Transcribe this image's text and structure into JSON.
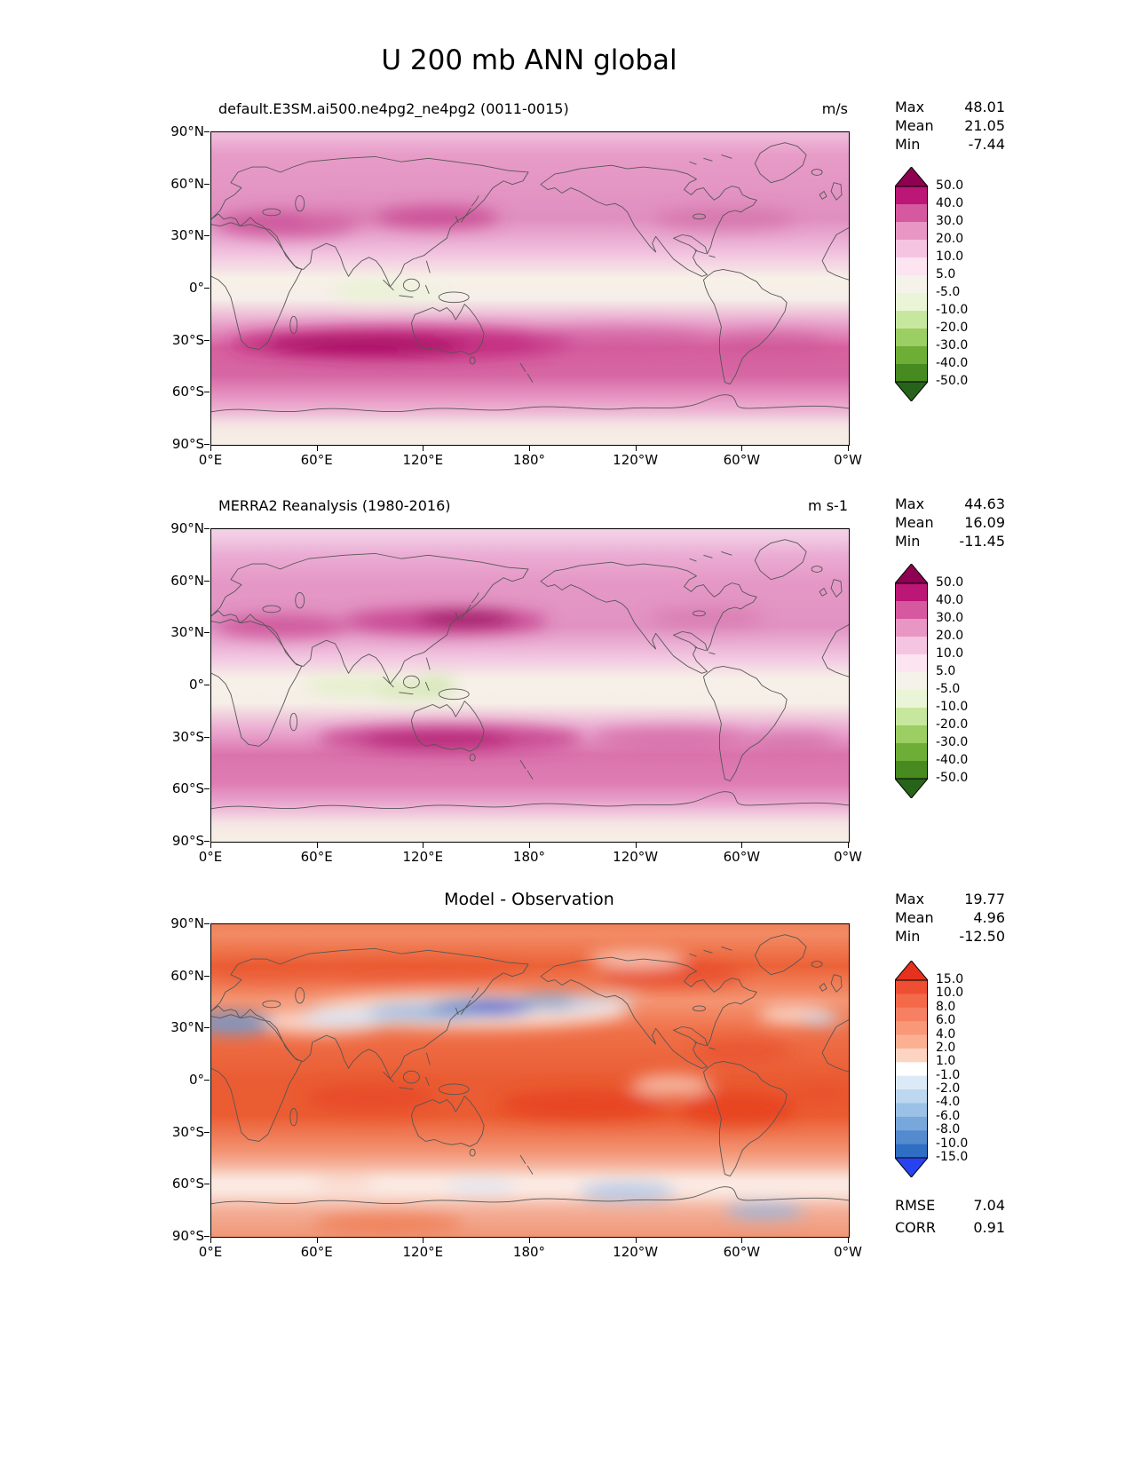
{
  "page_title": "U 200 mb ANN global",
  "axes": {
    "lat_ticks": [
      "90°N",
      "60°N",
      "30°N",
      "0°",
      "30°S",
      "60°S",
      "90°S"
    ],
    "lon_ticks": [
      "0°E",
      "60°E",
      "120°E",
      "180°",
      "120°W",
      "60°W",
      "0°W"
    ]
  },
  "panels": [
    {
      "title": "default.E3SM.ai500.ne4pg2_ne4pg2 (0011-0015)",
      "units": "m/s",
      "stats": {
        "max_label": "Max",
        "max": "48.01",
        "mean_label": "Mean",
        "mean": "21.05",
        "min_label": "Min",
        "min": "-7.44"
      },
      "colorbar": {
        "labels": [
          "50.0",
          "40.0",
          "30.0",
          "20.0",
          "10.0",
          "5.0",
          "-5.0",
          "-10.0",
          "-20.0",
          "-30.0",
          "-40.0",
          "-50.0"
        ],
        "colors": [
          "#8e0152",
          "#bc1676",
          "#d6589e",
          "#e897c4",
          "#f5c4e1",
          "#fce4f0",
          "#f5f2e9",
          "#e9f5d6",
          "#c7e79e",
          "#9bce63",
          "#6eae36",
          "#468a20",
          "#276419"
        ]
      }
    },
    {
      "title": "MERRA2 Reanalysis (1980-2016)",
      "units": "m s-1",
      "stats": {
        "max_label": "Max",
        "max": "44.63",
        "mean_label": "Mean",
        "mean": "16.09",
        "min_label": "Min",
        "min": "-11.45"
      },
      "colorbar": {
        "labels": [
          "50.0",
          "40.0",
          "30.0",
          "20.0",
          "10.0",
          "5.0",
          "-5.0",
          "-10.0",
          "-20.0",
          "-30.0",
          "-40.0",
          "-50.0"
        ],
        "colors": [
          "#8e0152",
          "#bc1676",
          "#d6589e",
          "#e897c4",
          "#f5c4e1",
          "#fce4f0",
          "#f5f2e9",
          "#e9f5d6",
          "#c7e79e",
          "#9bce63",
          "#6eae36",
          "#468a20",
          "#276419"
        ]
      }
    },
    {
      "title": "Model - Observation",
      "units": "",
      "stats": {
        "max_label": "Max",
        "max": "19.77",
        "mean_label": "Mean",
        "mean": "4.96",
        "min_label": "Min",
        "min": "-12.50"
      },
      "colorbar": {
        "labels": [
          "15.0",
          "10.0",
          "8.0",
          "6.0",
          "4.0",
          "2.0",
          "1.0",
          "-1.0",
          "-2.0",
          "-4.0",
          "-6.0",
          "-8.0",
          "-10.0",
          "-15.0"
        ],
        "colors": [
          "#e6311e",
          "#ee4f33",
          "#f3694a",
          "#f68061",
          "#f99879",
          "#fbb092",
          "#fdd3c1",
          "#ffffff",
          "#dce9f7",
          "#bcd7ef",
          "#9cc1e6",
          "#78a7db",
          "#548bcf",
          "#2f6ec2",
          "#2743ef"
        ]
      },
      "scores": {
        "rmse_label": "RMSE",
        "rmse": "7.04",
        "corr_label": "CORR",
        "corr": "0.91"
      }
    }
  ],
  "chart_data": [
    {
      "type": "heatmap",
      "subtype": "filled-contour-map",
      "title": "default.E3SM.ai500.ne4pg2_ne4pg2 (0011-0015)",
      "variable": "U 200 mb ANN global",
      "units": "m/s",
      "stats": {
        "max": 48.01,
        "mean": 21.05,
        "min": -7.44
      },
      "contour_levels": [
        -50,
        -40,
        -30,
        -20,
        -10,
        -5,
        5,
        10,
        20,
        30,
        40,
        50
      ],
      "x_ticks": [
        "0°E",
        "60°E",
        "120°E",
        "180°",
        "120°W",
        "60°W",
        "0°W"
      ],
      "y_ticks": [
        "90°N",
        "60°N",
        "30°N",
        "0°",
        "30°S",
        "60°S",
        "90°S"
      ],
      "colormap": "pink-positive / green-negative diverging",
      "legend_position": "right",
      "notes": "Zonal wind at 200 mb; magenta jet maxima near 35N (Asia, Atlantic) and strong SH band near 30-45S; weak easterlies (green) near equator over Indian Ocean/Maritime Continent."
    },
    {
      "type": "heatmap",
      "subtype": "filled-contour-map",
      "title": "MERRA2 Reanalysis (1980-2016)",
      "variable": "U 200 mb ANN global",
      "units": "m s-1",
      "stats": {
        "max": 44.63,
        "mean": 16.09,
        "min": -11.45
      },
      "contour_levels": [
        -50,
        -40,
        -30,
        -20,
        -10,
        -5,
        5,
        10,
        20,
        30,
        40,
        50
      ],
      "x_ticks": [
        "0°E",
        "60°E",
        "120°E",
        "180°",
        "120°W",
        "60°W",
        "0°W"
      ],
      "y_ticks": [
        "90°N",
        "60°N",
        "30°N",
        "0°",
        "30°S",
        "60°S",
        "90°S"
      ],
      "colormap": "pink-positive / green-negative diverging",
      "legend_position": "right",
      "notes": "Strong East Asian jet core (>40 m/s) near Japan at 35N; equatorial easterlies over Indian Ocean and Maritime Continent; SH westerly band near 30S."
    },
    {
      "type": "heatmap",
      "subtype": "filled-contour-map",
      "title": "Model - Observation",
      "variable": "U 200 mb ANN global difference",
      "units": "m/s",
      "stats": {
        "max": 19.77,
        "mean": 4.96,
        "min": -12.5,
        "rmse": 7.04,
        "corr": 0.91
      },
      "contour_levels": [
        -15,
        -10,
        -8,
        -6,
        -4,
        -2,
        -1,
        1,
        2,
        4,
        6,
        8,
        10,
        15
      ],
      "x_ticks": [
        "0°E",
        "60°E",
        "120°E",
        "180°",
        "120°W",
        "60°W",
        "0°W"
      ],
      "y_ticks": [
        "90°N",
        "60°N",
        "30°N",
        "0°",
        "30°S",
        "60°S",
        "90°S"
      ],
      "colormap": "red-positive / blue-negative diverging",
      "legend_position": "right",
      "notes": "Broad positive (red) bias globally; strong negative (blue) band along ~30-40N across Asia/NW Pacific; negative patches near NW Africa at 30N and in the Southern Ocean."
    }
  ]
}
